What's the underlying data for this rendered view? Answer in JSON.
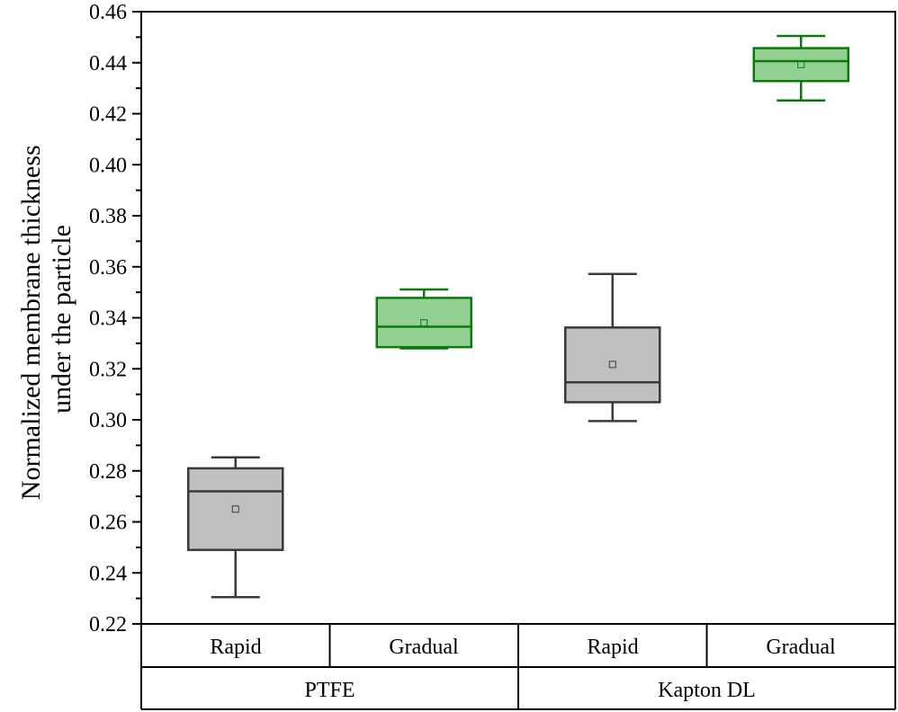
{
  "chart_data": {
    "type": "box",
    "ylabel_lines": [
      "Normalized membrane thickness",
      "under the particle"
    ],
    "ylim": [
      0.22,
      0.46
    ],
    "yticks": [
      "0.22",
      "0.24",
      "0.26",
      "0.28",
      "0.30",
      "0.32",
      "0.34",
      "0.36",
      "0.38",
      "0.40",
      "0.42",
      "0.44",
      "0.46"
    ],
    "ytick_values": [
      0.22,
      0.24,
      0.26,
      0.28,
      0.3,
      0.32,
      0.34,
      0.36,
      0.38,
      0.4,
      0.42,
      0.44,
      0.46
    ],
    "groups": [
      {
        "label": "PTFE",
        "categories": [
          "Rapid",
          "Gradual"
        ]
      },
      {
        "label": "Kapton DL",
        "categories": [
          "Rapid",
          "Gradual"
        ]
      }
    ],
    "boxes": [
      {
        "group": "PTFE",
        "category": "Rapid",
        "min": 0.2305,
        "q1": 0.249,
        "median": 0.272,
        "q3": 0.281,
        "max": 0.2853,
        "mean": 0.265,
        "fill": "#c0c0c0",
        "stroke": "#3a3a3a"
      },
      {
        "group": "PTFE",
        "category": "Gradual",
        "min": 0.328,
        "q1": 0.3285,
        "median": 0.3365,
        "q3": 0.3478,
        "max": 0.3511,
        "mean": 0.338,
        "fill": "#92d192",
        "stroke": "#0a7a0a"
      },
      {
        "group": "Kapton DL",
        "category": "Rapid",
        "min": 0.2995,
        "q1": 0.3069,
        "median": 0.3147,
        "q3": 0.3362,
        "max": 0.3572,
        "mean": 0.3217,
        "fill": "#c0c0c0",
        "stroke": "#3a3a3a"
      },
      {
        "group": "Kapton DL",
        "category": "Gradual",
        "min": 0.4252,
        "q1": 0.4328,
        "median": 0.4406,
        "q3": 0.4457,
        "max": 0.4505,
        "mean": 0.4393,
        "fill": "#92d192",
        "stroke": "#0a7a0a"
      }
    ]
  }
}
